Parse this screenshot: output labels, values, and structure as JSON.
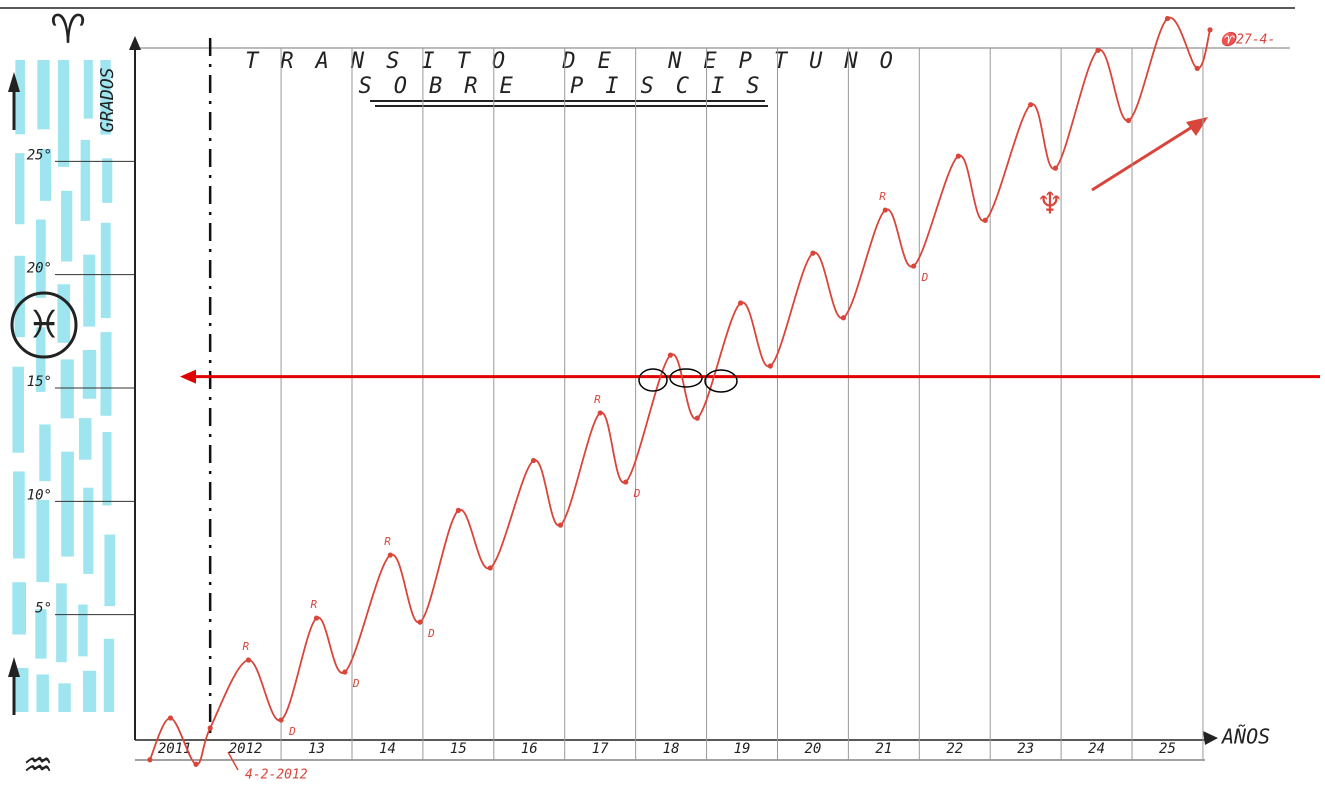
{
  "chart_data": {
    "type": "line",
    "title": "TRANSITO DE NEPTUNO",
    "subtitle": "SOBRE PISCIS",
    "y_label": "GRADOS",
    "x_label": "AÑOS",
    "aries_symbol": "♈",
    "pisces_symbol": "♓",
    "aquarius_symbol": "♒",
    "neptune_symbol": "♆",
    "start_date": "4-2-2012",
    "end_date": "♈27-4-",
    "color": "#d9453a",
    "x": [
      2011.15,
      2011.44,
      2011.8,
      2012.0,
      2012.54,
      2013.0,
      2013.5,
      2013.9,
      2014.54,
      2014.96,
      2015.5,
      2015.95,
      2016.56,
      2016.94,
      2017.5,
      2017.86,
      2018.49,
      2018.87,
      2019.48,
      2019.9,
      2020.5,
      2020.93,
      2021.52,
      2021.92,
      2022.55,
      2022.93,
      2023.57,
      2023.92,
      2024.52,
      2024.95,
      2025.5,
      2025.92,
      2026.1
    ],
    "values": [
      -1.4,
      0.44,
      -1.6,
      0,
      3.0,
      0.35,
      4.85,
      2.47,
      7.63,
      4.67,
      9.6,
      7.06,
      11.8,
      8.95,
      13.9,
      10.85,
      16.45,
      13.67,
      18.75,
      15.97,
      20.95,
      18.1,
      22.85,
      20.38,
      25.23,
      22.4,
      27.5,
      24.7,
      29.9,
      26.8,
      31.3,
      29.1,
      30.8
    ],
    "annotations": [
      {
        "x": 2012.54,
        "y": 3.0,
        "label": "R"
      },
      {
        "x": 2013.0,
        "y": 0.35,
        "label": "D"
      },
      {
        "x": 2013.5,
        "y": 4.85,
        "label": "R"
      },
      {
        "x": 2013.9,
        "y": 2.47,
        "label": "D"
      },
      {
        "x": 2014.54,
        "y": 7.63,
        "label": "R"
      },
      {
        "x": 2014.96,
        "y": 4.67,
        "label": "D"
      },
      {
        "x": 2017.5,
        "y": 13.9,
        "label": "R"
      },
      {
        "x": 2017.86,
        "y": 10.85,
        "label": "D"
      },
      {
        "x": 2021.52,
        "y": 22.85,
        "label": "R"
      },
      {
        "x": 2021.92,
        "y": 20.38,
        "label": "D"
      }
    ],
    "reference_line": {
      "value": 15.5,
      "color": "#e00000"
    },
    "xlim": [
      2010.94,
      2026.17
    ],
    "ylim": [
      0,
      30
    ],
    "start_marker": 2012,
    "xgrid": [
      2013,
      2014,
      2015,
      2016,
      2017,
      2018,
      2019,
      2020,
      2021,
      2022,
      2023,
      2024,
      2025,
      2026
    ],
    "xticks": [
      {
        "value": 2011.5,
        "label": "2011"
      },
      {
        "value": 2012.5,
        "label": "2012"
      },
      {
        "value": 2013.5,
        "label": "13"
      },
      {
        "value": 2014.5,
        "label": "14"
      },
      {
        "value": 2015.5,
        "label": "15"
      },
      {
        "value": 2016.5,
        "label": "16"
      },
      {
        "value": 2017.5,
        "label": "17"
      },
      {
        "value": 2018.5,
        "label": "18"
      },
      {
        "value": 2019.5,
        "label": "19"
      },
      {
        "value": 2020.5,
        "label": "20"
      },
      {
        "value": 2021.5,
        "label": "21"
      },
      {
        "value": 2022.5,
        "label": "22"
      },
      {
        "value": 2023.5,
        "label": "23"
      },
      {
        "value": 2024.5,
        "label": "24"
      },
      {
        "value": 2025.5,
        "label": "25"
      }
    ],
    "yticks": [
      {
        "value": 5,
        "label": "5°"
      },
      {
        "value": 10,
        "label": "10°"
      },
      {
        "value": 15,
        "label": "15°"
      },
      {
        "value": 20,
        "label": "20°"
      },
      {
        "value": 25,
        "label": "25°"
      }
    ]
  }
}
